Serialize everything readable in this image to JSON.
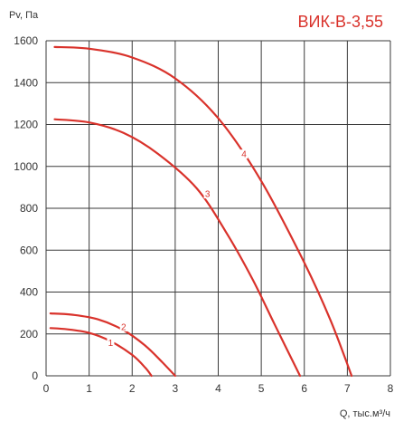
{
  "chart_data": {
    "type": "line",
    "title": "ВИК-В-3,55",
    "ylabel": "Pv, Па",
    "xlabel": "Q, тыс.м³/ч",
    "xlim": [
      0,
      8
    ],
    "ylim": [
      0,
      1600
    ],
    "x_ticks": [
      0,
      1,
      2,
      3,
      4,
      5,
      6,
      7,
      8
    ],
    "y_ticks": [
      0,
      200,
      400,
      600,
      800,
      1000,
      1200,
      1400,
      1600
    ],
    "grid": true,
    "colors": {
      "curve": "#d9322b",
      "grid": "#3a3a3a",
      "title": "#d9322b"
    },
    "series": [
      {
        "name": "1",
        "label_at": [
          1.5,
          150
        ],
        "points": [
          [
            0.1,
            228
          ],
          [
            0.5,
            222
          ],
          [
            1.0,
            205
          ],
          [
            1.5,
            165
          ],
          [
            2.0,
            100
          ],
          [
            2.3,
            40
          ],
          [
            2.45,
            0
          ]
        ]
      },
      {
        "name": "2",
        "label_at": [
          1.8,
          225
        ],
        "points": [
          [
            0.1,
            298
          ],
          [
            0.6,
            292
          ],
          [
            1.2,
            270
          ],
          [
            1.8,
            218
          ],
          [
            2.3,
            145
          ],
          [
            2.7,
            65
          ],
          [
            3.0,
            0
          ]
        ]
      },
      {
        "name": "3",
        "label_at": [
          3.75,
          860
        ],
        "points": [
          [
            0.2,
            1225
          ],
          [
            1.0,
            1210
          ],
          [
            1.8,
            1160
          ],
          [
            2.6,
            1060
          ],
          [
            3.5,
            895
          ],
          [
            4.2,
            680
          ],
          [
            4.8,
            460
          ],
          [
            5.3,
            250
          ],
          [
            5.9,
            0
          ]
        ]
      },
      {
        "name": "4",
        "label_at": [
          4.6,
          1050
        ],
        "points": [
          [
            0.2,
            1570
          ],
          [
            1.0,
            1562
          ],
          [
            2.0,
            1520
          ],
          [
            3.0,
            1420
          ],
          [
            4.0,
            1230
          ],
          [
            5.0,
            930
          ],
          [
            6.0,
            540
          ],
          [
            6.6,
            270
          ],
          [
            7.1,
            0
          ]
        ]
      }
    ]
  }
}
